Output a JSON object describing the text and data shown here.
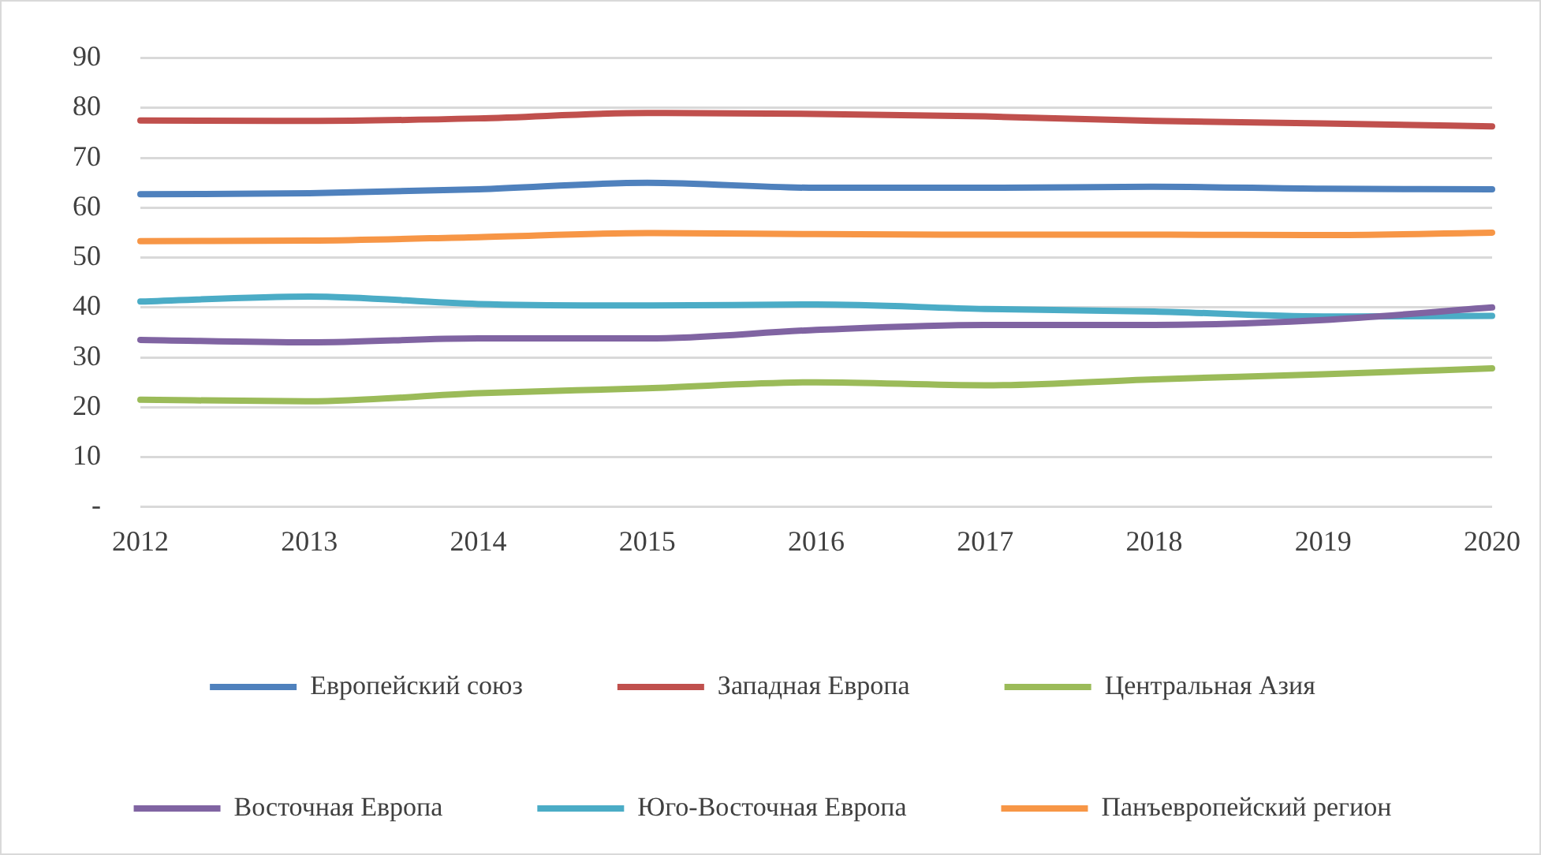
{
  "chart_data": {
    "type": "line",
    "categories": [
      "2012",
      "2013",
      "2014",
      "2015",
      "2016",
      "2017",
      "2018",
      "2019",
      "2020"
    ],
    "series": [
      {
        "name": "Европейский союз",
        "color": "#4f81bd",
        "values": [
          62.7,
          62.9,
          63.7,
          65,
          64,
          64,
          64.2,
          63.8,
          63.7
        ]
      },
      {
        "name": "Западная Европа",
        "color": "#c0504d",
        "values": [
          77.5,
          77.4,
          77.9,
          79,
          78.8,
          78.3,
          77.4,
          76.9,
          76.3
        ]
      },
      {
        "name": "Центральная Азия",
        "color": "#9bbb59",
        "values": [
          21.5,
          21.2,
          22.8,
          23.8,
          25,
          24.4,
          25.6,
          26.6,
          27.8
        ]
      },
      {
        "name": "Восточная Европа",
        "color": "#8064a2",
        "values": [
          33.5,
          33,
          33.8,
          33.8,
          35.5,
          36.5,
          36.5,
          37.5,
          40
        ]
      },
      {
        "name": "Юго-Восточная Европа",
        "color": "#4bacc6",
        "values": [
          41.2,
          42.2,
          40.7,
          40.4,
          40.6,
          39.7,
          39.2,
          38.2,
          38.3
        ]
      },
      {
        "name": "Панъевропейский регион",
        "color": "#f79646",
        "values": [
          53.3,
          53.4,
          54.1,
          54.9,
          54.7,
          54.6,
          54.6,
          54.5,
          55
        ]
      }
    ],
    "ylim": [
      0,
      90
    ],
    "yticks": [
      {
        "value": 0,
        "label": "-"
      },
      10,
      20,
      30,
      40,
      50,
      60,
      70,
      80,
      90
    ],
    "grid": "y",
    "legend": "bottom",
    "marker": "none",
    "line_style": "solid"
  }
}
